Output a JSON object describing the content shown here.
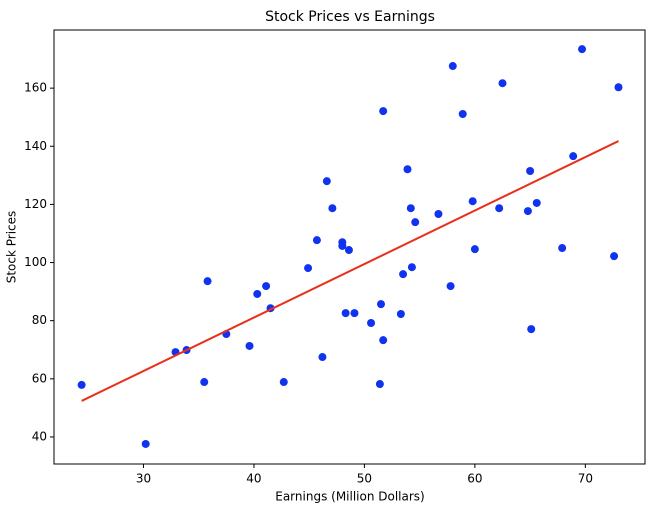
{
  "chart_data": {
    "type": "scatter",
    "title": "Stock Prices vs Earnings",
    "x_label": "Earnings (Million Dollars)",
    "y_label": "Stock Prices",
    "x": [
      24.4,
      30.2,
      32.9,
      33.9,
      35.5,
      35.8,
      37.5,
      39.6,
      40.3,
      41.1,
      41.5,
      42.7,
      44.9,
      45.7,
      46.2,
      46.6,
      47.1,
      48.0,
      48.0,
      48.6,
      48.3,
      49.1,
      50.6,
      51.7,
      51.5,
      51.7,
      51.4,
      53.3,
      53.5,
      53.9,
      54.2,
      54.3,
      54.6,
      56.7,
      58.0,
      57.8,
      58.9,
      59.8,
      60.0,
      62.5,
      62.2,
      65.0,
      64.8,
      65.6,
      65.1,
      67.9,
      68.9,
      69.7,
      72.6,
      73.0
    ],
    "values": [
      57.9,
      37.6,
      69.2,
      69.9,
      58.9,
      93.6,
      75.4,
      71.3,
      89.2,
      91.9,
      84.3,
      58.9,
      98.1,
      107.7,
      67.5,
      128.0,
      118.7,
      107.0,
      105.7,
      104.3,
      82.6,
      82.6,
      79.2,
      152.1,
      85.7,
      73.3,
      58.2,
      82.3,
      96.0,
      132.1,
      118.7,
      98.4,
      113.9,
      116.7,
      167.6,
      91.9,
      151.1,
      121.1,
      104.6,
      161.7,
      118.7,
      131.5,
      117.7,
      120.5,
      77.1,
      105.0,
      136.6,
      173.4,
      102.2,
      160.3
    ],
    "color": "#1033f0",
    "fit": {
      "x": [
        24.4,
        73.0
      ],
      "values": [
        52.4,
        141.8
      ],
      "color": "#e8301c"
    },
    "xlim": [
      21.9,
      75.4
    ],
    "ylim": [
      30.7,
      180
    ],
    "xticks": [
      30,
      40,
      50,
      60,
      70
    ],
    "yticks": [
      40,
      60,
      80,
      100,
      120,
      140,
      160
    ]
  }
}
